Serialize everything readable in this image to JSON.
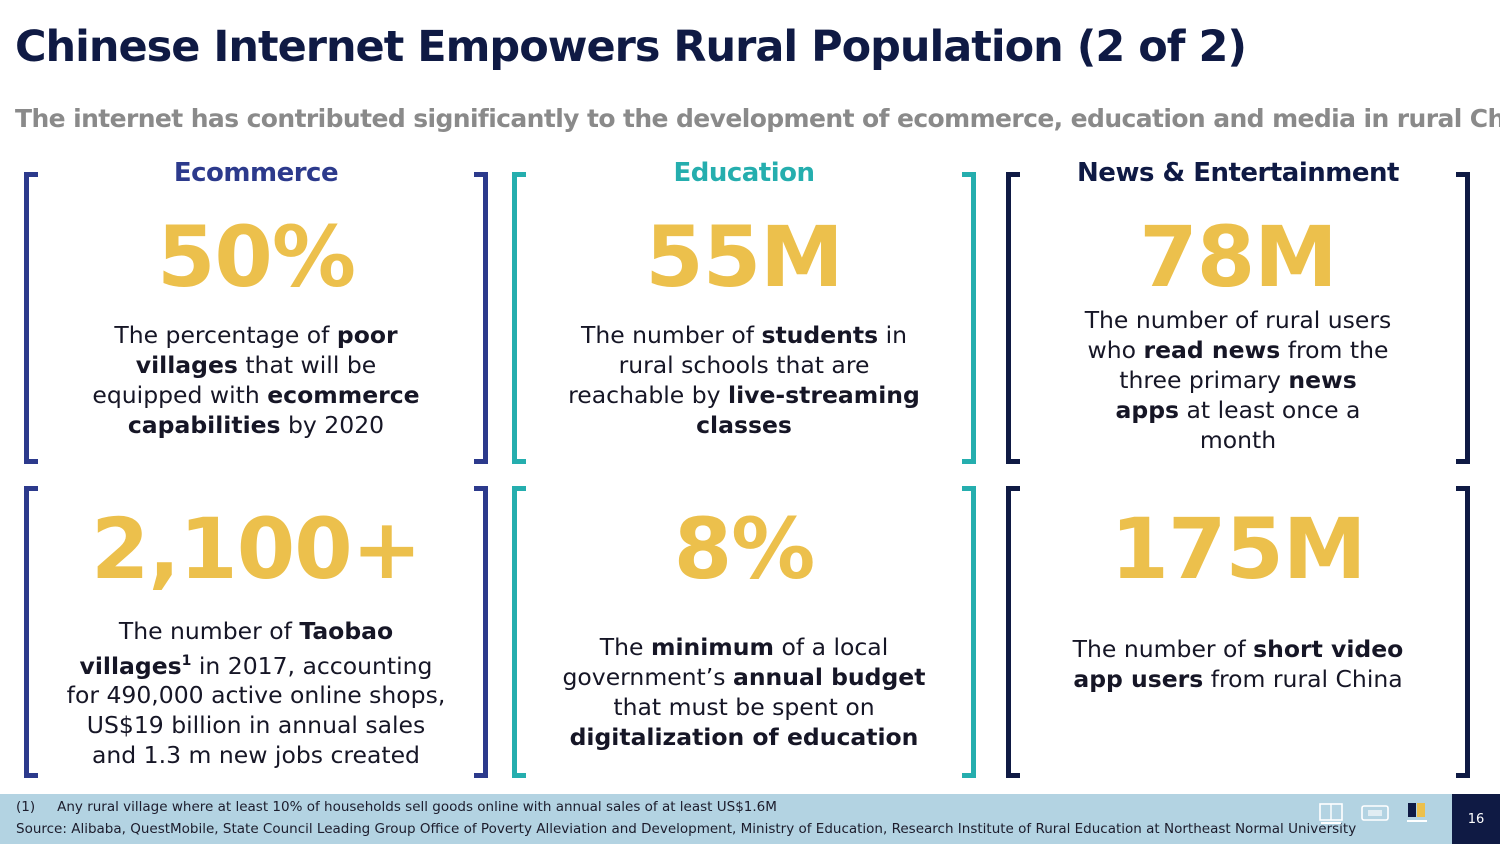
{
  "title": "Chinese Internet Empowers Rural Population (2 of 2)",
  "subtitle": "The internet has contributed significantly to the development of ecommerce, education and media in rural China.",
  "colors": {
    "ecommerce": "#2c3a8c",
    "education": "#25aeae",
    "news": "#0f1a44",
    "stat": "#ecc04c"
  },
  "columns": {
    "ecommerce": {
      "heading": "Ecommerce",
      "top": {
        "stat": "50%",
        "d": [
          "The percentage of ",
          "poor",
          " ",
          "villages",
          " that will be equipped with ",
          "ecommerce capabilities",
          " by 2020"
        ]
      },
      "bottom": {
        "stat": "2,100+",
        "d": [
          "The number of ",
          "Taobao villages",
          "1",
          " in 2017, accounting for 490,000 active online shops, US$19 billion in annual sales and 1.3 m new jobs created"
        ]
      }
    },
    "education": {
      "heading": "Education",
      "top": {
        "stat": "55M",
        "d": [
          "The number of ",
          "students",
          " in rural schools that are reachable by ",
          "live-streaming classes"
        ]
      },
      "bottom": {
        "stat": "8%",
        "d": [
          "The ",
          "minimum",
          " of a local government’s ",
          "annual budget",
          " that must be spent on ",
          "digitalization of education"
        ]
      }
    },
    "news": {
      "heading": "News & Entertainment",
      "top": {
        "stat": "78M",
        "d": [
          "The number of rural users who ",
          "read news",
          " from the three primary ",
          "news apps",
          " at least once a month"
        ]
      },
      "bottom": {
        "stat": "175M",
        "d": [
          "The number of ",
          "short video app users",
          " from rural China"
        ]
      }
    }
  },
  "footer": {
    "footnote_num": "(1)",
    "footnote": "Any rural village where at least 10% of households sell goods online with annual sales of at least US$1.6M",
    "source": "Source: Alibaba, QuestMobile, State Council Leading Group Office of Poverty Alleviation and Development, Ministry of Education, Research Institute of Rural Education at Northeast Normal University",
    "page": "16"
  }
}
